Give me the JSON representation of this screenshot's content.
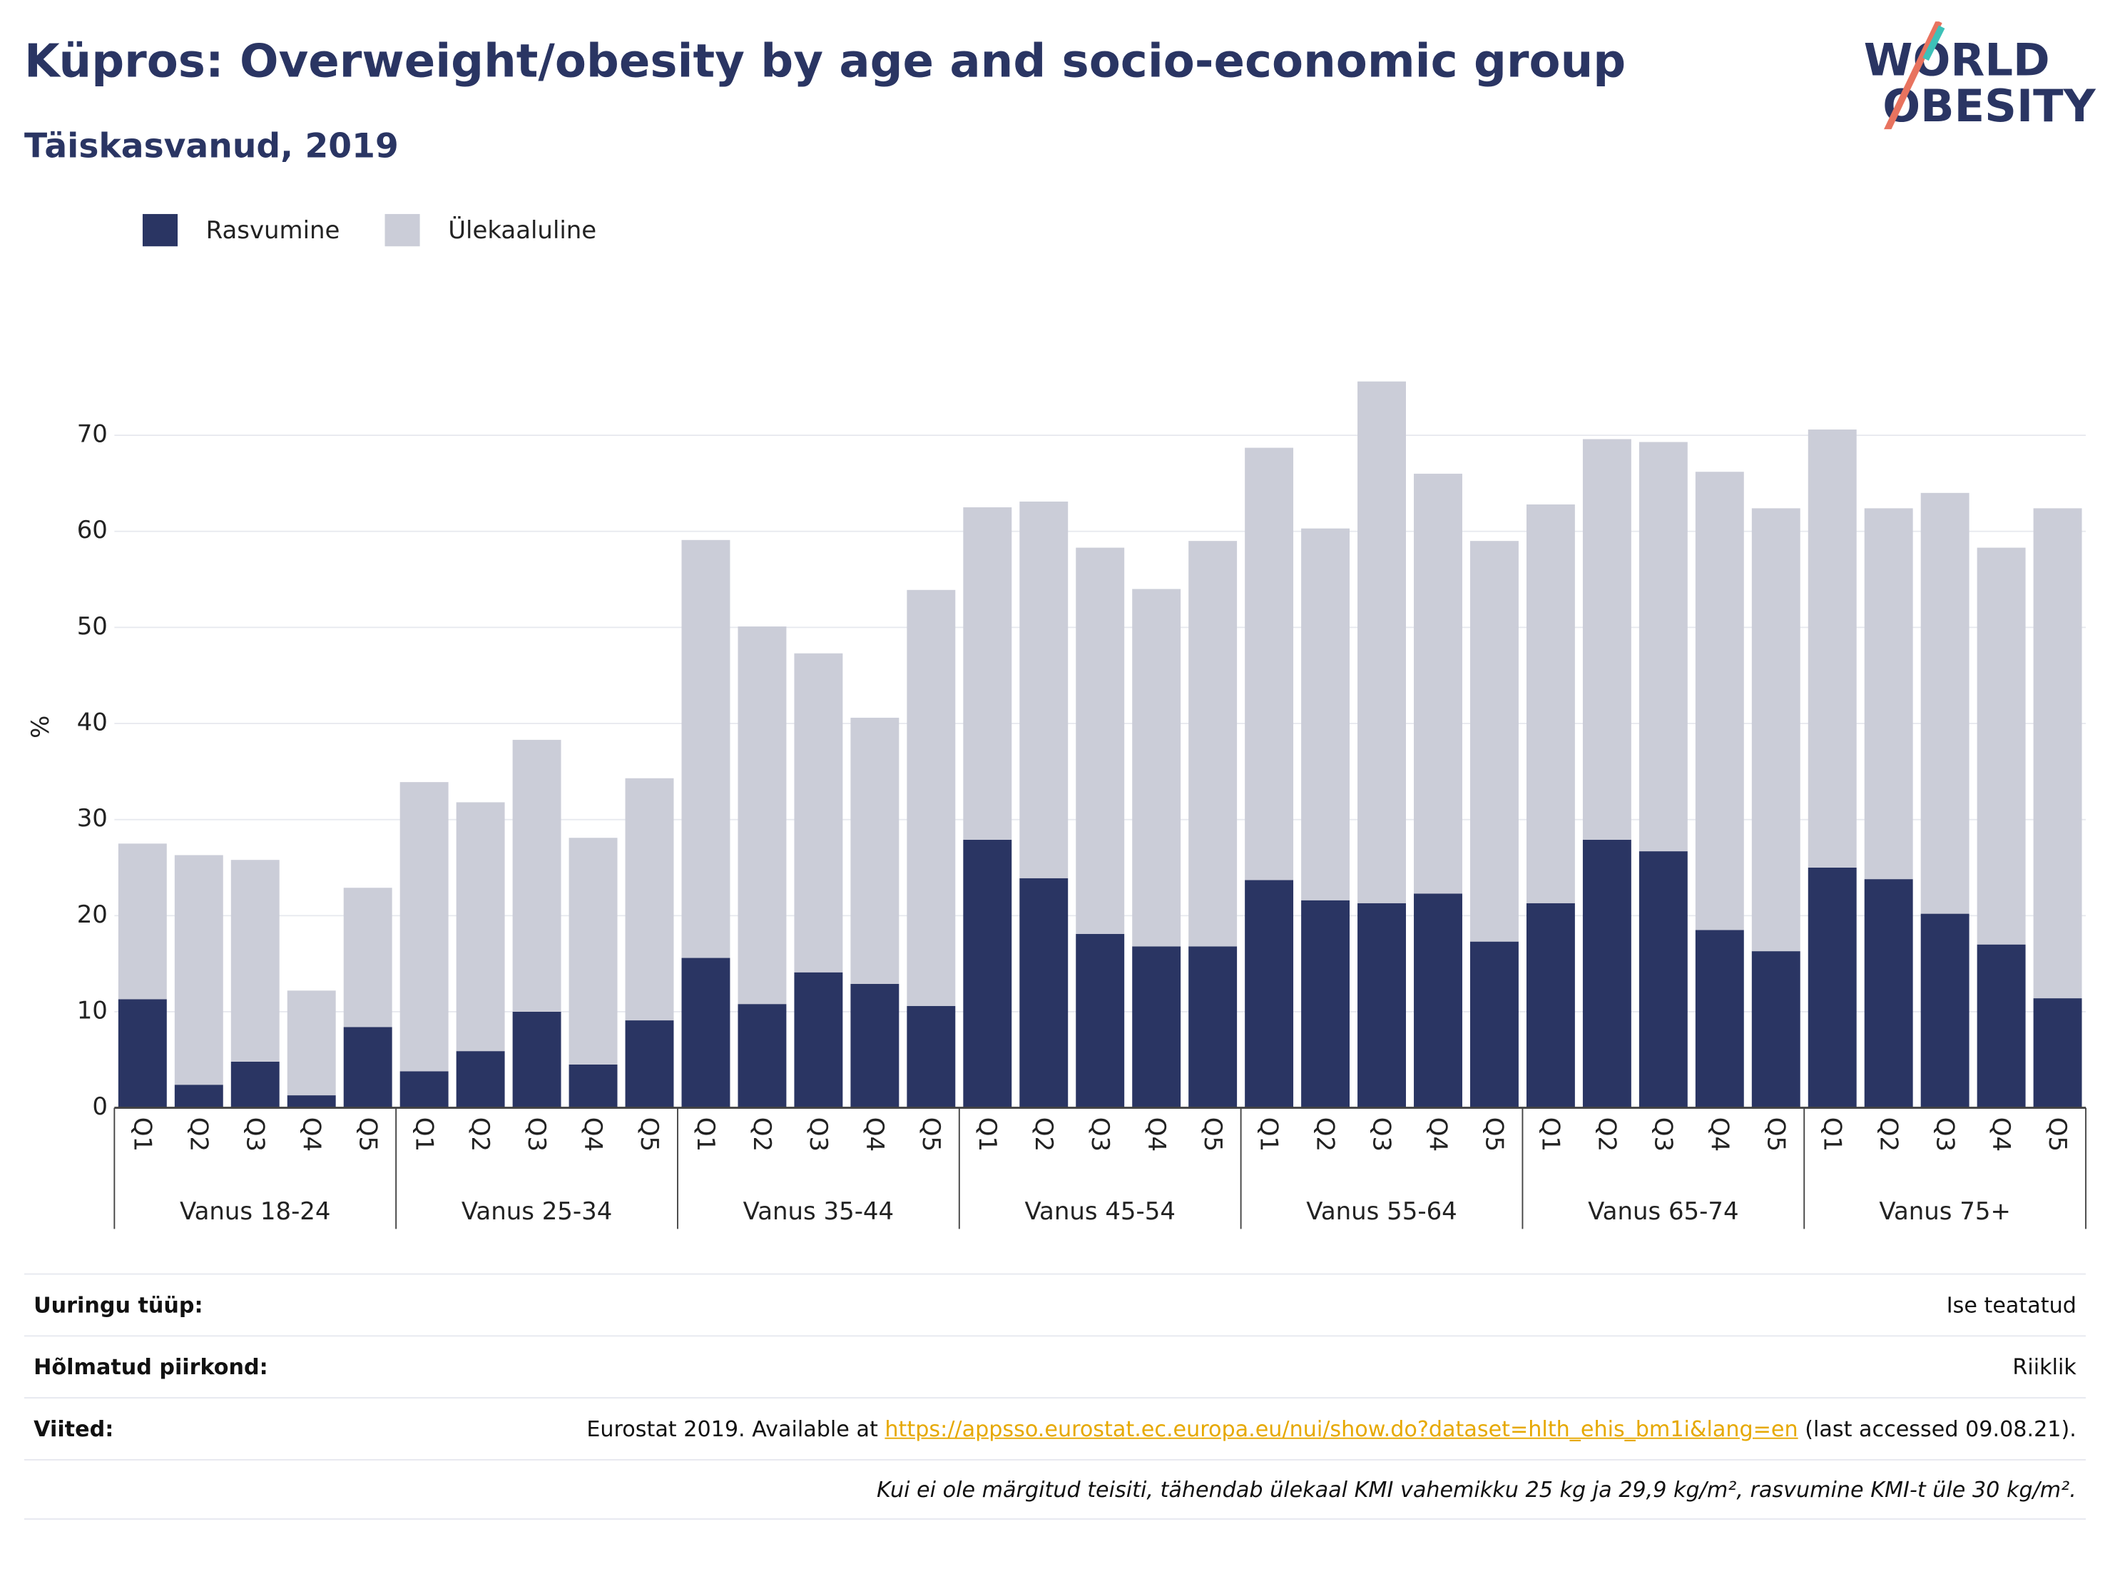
{
  "chart_data": {
    "type": "stacked_bar",
    "title": "Küpros: Overweight/obesity by age and socio-economic group",
    "subtitle": "Täiskasvanud, 2019",
    "y_label": "%",
    "groups": [
      {
        "name": "Vanus 18-24",
        "categories": [
          "Q1",
          "Q2",
          "Q3",
          "Q4",
          "Q5"
        ]
      },
      {
        "name": "Vanus 25-34",
        "categories": [
          "Q1",
          "Q2",
          "Q3",
          "Q4",
          "Q5"
        ]
      },
      {
        "name": "Vanus 35-44",
        "categories": [
          "Q1",
          "Q2",
          "Q3",
          "Q4",
          "Q5"
        ]
      },
      {
        "name": "Vanus 45-54",
        "categories": [
          "Q1",
          "Q2",
          "Q3",
          "Q4",
          "Q5"
        ]
      },
      {
        "name": "Vanus 55-64",
        "categories": [
          "Q1",
          "Q2",
          "Q3",
          "Q4",
          "Q5"
        ]
      },
      {
        "name": "Vanus 65-74",
        "categories": [
          "Q1",
          "Q2",
          "Q3",
          "Q4",
          "Q5"
        ]
      },
      {
        "name": "Vanus 75+",
        "categories": [
          "Q1",
          "Q2",
          "Q3",
          "Q4",
          "Q5"
        ]
      }
    ],
    "series": [
      {
        "name": "Rasvumine",
        "color": "#2a3563",
        "values": [
          11.3,
          2.4,
          4.8,
          1.3,
          8.4,
          3.8,
          5.9,
          10.0,
          4.5,
          9.1,
          15.6,
          10.8,
          14.1,
          12.9,
          10.6,
          27.9,
          23.9,
          18.1,
          16.8,
          16.8,
          23.7,
          21.6,
          21.3,
          22.3,
          17.3,
          21.3,
          27.9,
          26.7,
          18.5,
          16.3,
          25.0,
          23.8,
          20.2,
          17.0,
          11.4
        ]
      },
      {
        "name": "Ülekaaluline",
        "color": "#cbcdd8",
        "values": [
          16.2,
          23.9,
          21.0,
          10.9,
          14.5,
          30.1,
          25.9,
          28.3,
          23.6,
          25.2,
          43.5,
          39.3,
          33.2,
          27.7,
          43.3,
          34.6,
          39.2,
          40.2,
          37.2,
          42.2,
          45.0,
          38.7,
          54.3,
          43.7,
          41.7,
          41.5,
          41.7,
          42.6,
          47.7,
          46.1,
          45.6,
          38.6,
          43.8,
          41.3,
          51.0
        ]
      }
    ],
    "ylim": [
      0,
      80
    ],
    "yticks": [
      0,
      10,
      20,
      30,
      40,
      50,
      60,
      70
    ],
    "grid": true
  },
  "logo": {
    "line1": "WORLD",
    "line2": "OBESITY"
  },
  "footer": {
    "rows": [
      {
        "label": "Uuringu tüüp:",
        "value": "Ise teatatud"
      },
      {
        "label": "Hõlmatud piirkond:",
        "value": "Riiklik"
      }
    ],
    "references": {
      "label": "Viited:",
      "before": "Eurostat 2019. Available at ",
      "link": "https://appsso.eurostat.ec.europa.eu/nui/show.do?dataset=hlth_ehis_bm1i&lang=en",
      "after": " (last accessed 09.08.21)."
    },
    "note": "Kui ei ole märgitud teisiti, tähendab ülekaal KMI vahemikku 25 kg ja 29,9 kg/m², rasvumine KMI-t üle 30 kg/m²."
  }
}
